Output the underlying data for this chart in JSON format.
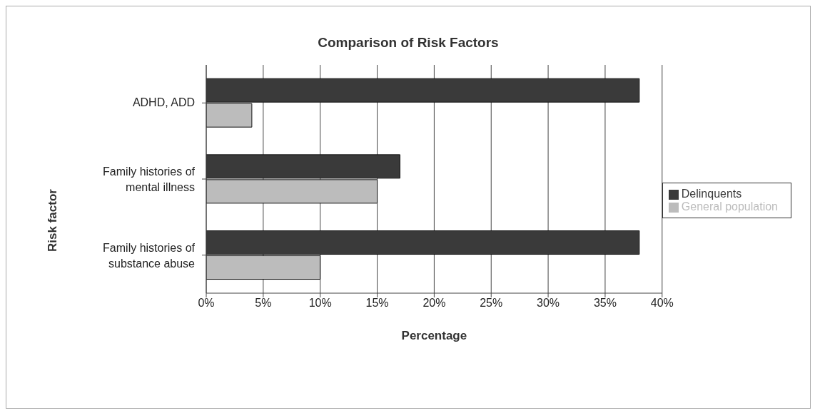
{
  "chart_data": {
    "type": "bar",
    "orientation": "horizontal",
    "title": "Comparison of Risk Factors",
    "xlabel": "Percentage",
    "ylabel": "Risk factor",
    "categories": [
      "ADHD, ADD",
      "Family histories of mental illness",
      "Family histories of substance abuse"
    ],
    "series": [
      {
        "name": "Delinquents",
        "color": "#3a3a3a",
        "values": [
          38,
          17,
          38
        ]
      },
      {
        "name": "General population",
        "color": "#bcbcbc",
        "values": [
          4,
          15,
          10
        ]
      }
    ],
    "xlim": [
      0,
      40
    ],
    "xticks": [
      {
        "value": 0,
        "label": "0%"
      },
      {
        "value": 5,
        "label": "5%"
      },
      {
        "value": 10,
        "label": "10%"
      },
      {
        "value": 15,
        "label": "15%"
      },
      {
        "value": 20,
        "label": "20%"
      },
      {
        "value": 25,
        "label": "25%"
      },
      {
        "value": 30,
        "label": "30%"
      },
      {
        "value": 35,
        "label": "35%"
      },
      {
        "value": 40,
        "label": "40%"
      }
    ],
    "grid": "x",
    "legend": "right"
  }
}
